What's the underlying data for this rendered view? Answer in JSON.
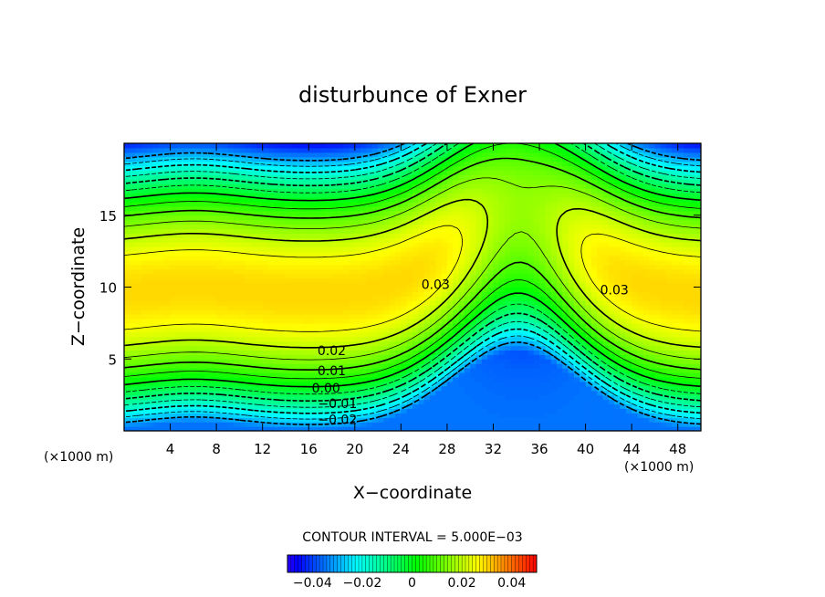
{
  "chart_data": {
    "type": "heatmap",
    "title": "disturbunce of Exner",
    "xlabel": "X−coordinate",
    "ylabel": "Z−coordinate",
    "x_unit": "(×1000 m)",
    "z_unit": "(×1000 m)",
    "xlim": [
      0,
      50
    ],
    "ylim": [
      0,
      20
    ],
    "x_ticks": [
      4,
      8,
      12,
      16,
      20,
      24,
      28,
      32,
      36,
      40,
      44,
      48
    ],
    "y_ticks": [
      5,
      10,
      15
    ],
    "contour_interval_text": "CONTOUR INTERVAL = 5.000E−03",
    "contour_interval": 0.005,
    "contour_labels": [
      {
        "text": "0.03",
        "x": 27,
        "z": 10.2
      },
      {
        "text": "0.03",
        "x": 42.5,
        "z": 9.8
      },
      {
        "text": "0.02",
        "x": 18,
        "z": 5.6
      },
      {
        "text": "0.01",
        "x": 18,
        "z": 4.2
      },
      {
        "text": "0.00",
        "x": 17.5,
        "z": 3.0
      },
      {
        "text": "−0.01",
        "x": 18.5,
        "z": 1.9
      },
      {
        "text": "−0.02",
        "x": 18.5,
        "z": 0.8
      }
    ],
    "colorbar": {
      "min": -0.05,
      "max": 0.05,
      "tick_values": [
        -0.04,
        -0.02,
        0,
        0.02,
        0.04
      ],
      "tick_labels": [
        "−0.04",
        "−0.02",
        "0",
        "0.02",
        "0.04"
      ]
    },
    "grid": false
  }
}
